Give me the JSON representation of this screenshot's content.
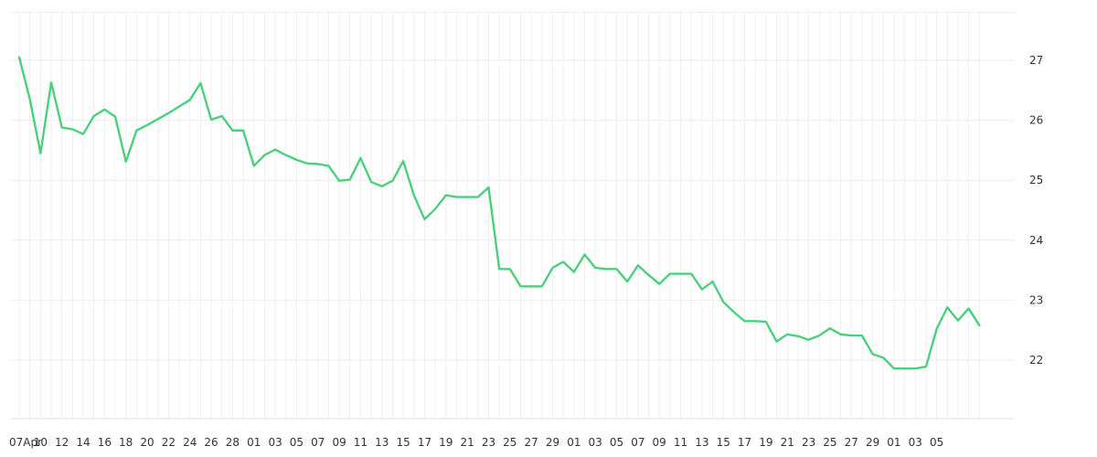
{
  "chart_data": {
    "type": "line",
    "title": "",
    "xlabel": "",
    "ylabel": "",
    "grid": true,
    "ylim": [
      21,
      28
    ],
    "y_ticks": [
      22,
      23,
      24,
      25,
      26,
      27
    ],
    "x_tick_labels": [
      "07Apr",
      "10",
      "12",
      "14",
      "16",
      "18",
      "20",
      "22",
      "24",
      "26",
      "28",
      "01",
      "03",
      "05",
      "07",
      "09",
      "11",
      "13",
      "15",
      "17",
      "19",
      "21",
      "23",
      "25",
      "27",
      "29",
      "01",
      "03",
      "05",
      "07",
      "09",
      "11",
      "13",
      "15",
      "17",
      "19",
      "21",
      "23",
      "25",
      "27",
      "29",
      "01",
      "03",
      "05"
    ],
    "x": [
      "2022-04-07",
      "2022-04-08",
      "2022-04-09",
      "2022-04-10",
      "2022-04-11",
      "2022-04-12",
      "2022-04-13",
      "2022-04-14",
      "2022-04-15",
      "2022-04-16",
      "2022-04-17",
      "2022-04-18",
      "2022-04-19",
      "2022-04-20",
      "2022-04-21",
      "2022-04-22",
      "2022-04-23",
      "2022-04-24",
      "2022-04-25",
      "2022-04-26",
      "2022-04-27",
      "2022-04-28",
      "2022-04-29",
      "2022-04-30",
      "2022-05-01",
      "2022-05-02",
      "2022-05-03",
      "2022-05-04",
      "2022-05-05",
      "2022-05-06",
      "2022-05-07",
      "2022-05-08",
      "2022-05-09",
      "2022-05-10",
      "2022-05-11",
      "2022-05-12",
      "2022-05-13",
      "2022-05-14",
      "2022-05-15",
      "2022-05-16",
      "2022-05-17",
      "2022-05-18",
      "2022-05-19",
      "2022-05-20",
      "2022-05-21",
      "2022-05-22",
      "2022-05-23",
      "2022-05-24",
      "2022-05-25",
      "2022-05-26",
      "2022-05-27",
      "2022-05-28",
      "2022-05-29",
      "2022-05-30",
      "2022-05-31",
      "2022-06-01",
      "2022-06-02",
      "2022-06-03",
      "2022-06-04",
      "2022-06-05",
      "2022-06-06",
      "2022-06-07",
      "2022-06-08",
      "2022-06-09",
      "2022-06-10",
      "2022-06-11",
      "2022-06-12",
      "2022-06-13",
      "2022-06-14",
      "2022-06-15",
      "2022-06-16",
      "2022-06-17",
      "2022-06-18",
      "2022-06-19",
      "2022-06-20",
      "2022-06-21",
      "2022-06-22",
      "2022-06-23",
      "2022-06-24",
      "2022-06-25",
      "2022-06-26",
      "2022-06-27",
      "2022-06-28",
      "2022-06-29",
      "2022-06-30",
      "2022-07-01",
      "2022-07-02",
      "2022-07-03",
      "2022-07-04",
      "2022-07-05",
      "2022-07-06"
    ],
    "series": [
      {
        "color": "#4cd07d",
        "values": [
          27.05,
          26.35,
          25.45,
          26.63,
          25.88,
          25.85,
          25.77,
          26.07,
          26.18,
          26.06,
          25.31,
          25.83,
          25.92,
          26.02,
          26.12,
          26.23,
          26.34,
          26.62,
          26.01,
          26.07,
          25.83,
          25.83,
          25.24,
          25.42,
          25.51,
          25.42,
          25.34,
          25.28,
          25.27,
          25.24,
          24.99,
          25.01,
          25.37,
          24.97,
          24.9,
          24.99,
          25.32,
          24.75,
          24.35,
          24.52,
          24.75,
          24.72,
          24.72,
          24.72,
          24.88,
          23.52,
          23.52,
          23.23,
          23.23,
          23.23,
          23.54,
          23.64,
          23.47,
          23.76,
          23.54,
          23.52,
          23.52,
          23.31,
          23.58,
          23.42,
          23.27,
          23.44,
          23.44,
          23.44,
          23.18,
          23.31,
          22.97,
          22.8,
          22.65,
          22.65,
          22.64,
          22.31,
          22.43,
          22.4,
          22.34,
          22.41,
          22.53,
          22.43,
          22.41,
          22.41,
          22.1,
          22.04,
          21.86,
          21.86,
          21.86,
          21.89,
          22.52,
          22.88,
          22.66,
          22.86,
          22.58
        ]
      }
    ]
  }
}
